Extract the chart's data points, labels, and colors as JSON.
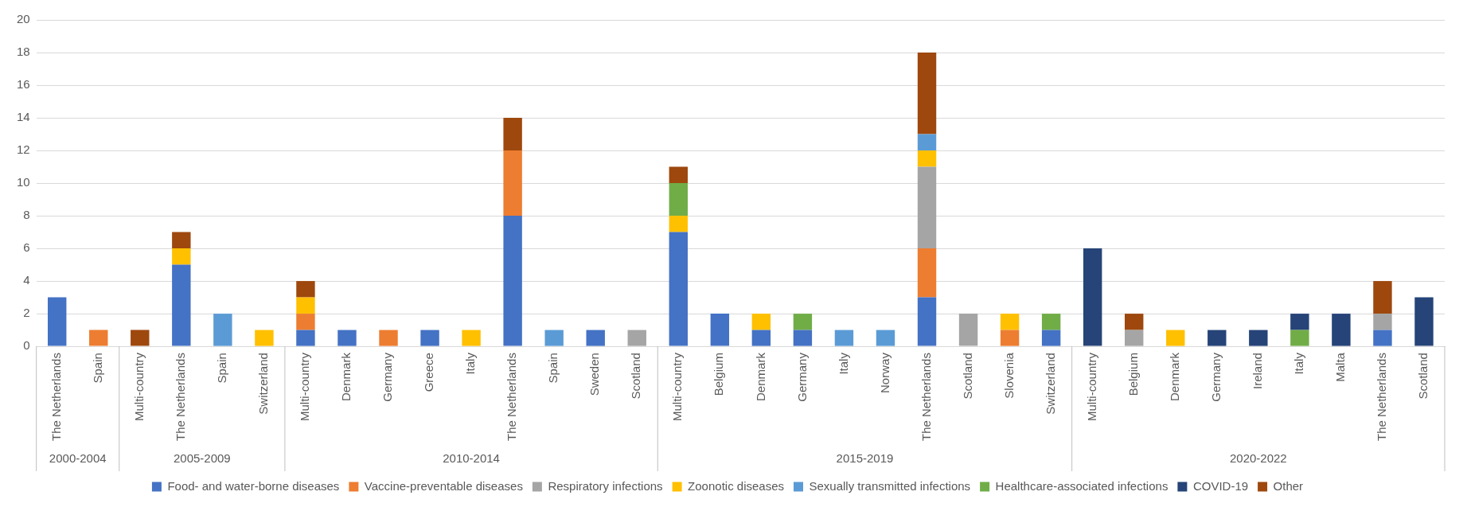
{
  "chart_data": {
    "type": "bar",
    "stacked": true,
    "categories": [
      "The Netherlands",
      "Spain",
      "Multi-country",
      "The Netherlands",
      "Spain",
      "Switzerland",
      "Multi-country",
      "Denmark",
      "Germany",
      "Greece",
      "Italy",
      "The Netherlands",
      "Spain",
      "Sweden",
      "Scotland",
      "Multi-country",
      "Belgium",
      "Denmark",
      "Germany",
      "Italy",
      "Norway",
      "The Netherlands",
      "Scotland",
      "Slovenia",
      "Switzerland",
      "Multi-country",
      "Belgium",
      "Denmark",
      "Germany",
      "Ireland",
      "Italy",
      "Malta",
      "The Netherlands",
      "Scotland"
    ],
    "series": [
      {
        "name": "Food- and water-borne diseases",
        "color": "#4472c4",
        "values": [
          3,
          null,
          null,
          5,
          null,
          null,
          1,
          1,
          null,
          1,
          null,
          8,
          null,
          1,
          null,
          7,
          2,
          1,
          1,
          null,
          null,
          3,
          null,
          null,
          1,
          null,
          null,
          null,
          null,
          null,
          null,
          null,
          1,
          null
        ]
      },
      {
        "name": "Vaccine-preventable diseases",
        "color": "#ed7d31",
        "values": [
          null,
          1,
          null,
          null,
          null,
          null,
          1,
          null,
          1,
          null,
          null,
          4,
          null,
          null,
          null,
          null,
          null,
          null,
          null,
          null,
          null,
          3,
          null,
          1,
          null,
          null,
          null,
          null,
          null,
          null,
          null,
          null,
          null,
          null
        ]
      },
      {
        "name": "Respiratory infections",
        "color": "#a5a5a5",
        "values": [
          null,
          null,
          null,
          null,
          null,
          null,
          null,
          null,
          null,
          null,
          null,
          null,
          null,
          null,
          1,
          null,
          null,
          null,
          null,
          null,
          null,
          5,
          2,
          null,
          null,
          null,
          1,
          null,
          null,
          null,
          null,
          null,
          1,
          null
        ]
      },
      {
        "name": "Zoonotic diseases",
        "color": "#ffc000",
        "values": [
          null,
          null,
          null,
          1,
          null,
          1,
          1,
          null,
          null,
          null,
          1,
          null,
          null,
          null,
          null,
          1,
          null,
          1,
          null,
          null,
          null,
          1,
          null,
          1,
          null,
          null,
          null,
          1,
          null,
          null,
          null,
          null,
          null,
          null
        ]
      },
      {
        "name": "Sexually transmitted infections",
        "color": "#5b9bd5",
        "values": [
          null,
          null,
          null,
          null,
          2,
          null,
          null,
          null,
          null,
          null,
          null,
          null,
          1,
          null,
          null,
          null,
          null,
          null,
          null,
          1,
          1,
          1,
          null,
          null,
          null,
          null,
          null,
          null,
          null,
          null,
          null,
          null,
          null,
          null
        ]
      },
      {
        "name": "Healthcare-associated infections",
        "color": "#70ad47",
        "values": [
          null,
          null,
          null,
          null,
          null,
          null,
          null,
          null,
          null,
          null,
          null,
          null,
          null,
          null,
          null,
          2,
          null,
          null,
          1,
          null,
          null,
          null,
          null,
          null,
          1,
          null,
          null,
          null,
          null,
          null,
          1,
          null,
          null,
          null
        ]
      },
      {
        "name": "COVID-19",
        "color": "#264478",
        "values": [
          null,
          null,
          null,
          null,
          null,
          null,
          null,
          null,
          null,
          null,
          null,
          null,
          null,
          null,
          null,
          null,
          null,
          null,
          null,
          null,
          null,
          null,
          null,
          null,
          null,
          6,
          null,
          null,
          1,
          1,
          1,
          2,
          null,
          3
        ]
      },
      {
        "name": "Other",
        "color": "#9e480e",
        "values": [
          null,
          null,
          1,
          1,
          null,
          null,
          1,
          null,
          null,
          null,
          null,
          2,
          null,
          null,
          null,
          1,
          null,
          null,
          null,
          null,
          null,
          5,
          null,
          null,
          null,
          null,
          1,
          null,
          null,
          null,
          null,
          null,
          2,
          null
        ]
      }
    ],
    "annotations": [
      "2000-2004",
      "2005-2009",
      "2010-2014",
      "2015-2019",
      "2020-2022"
    ],
    "ylim": [
      0,
      20
    ],
    "yticks": [
      0,
      2,
      4,
      6,
      8,
      10,
      12,
      14,
      16,
      18,
      20
    ],
    "grid": "y",
    "legend": "bottom"
  }
}
